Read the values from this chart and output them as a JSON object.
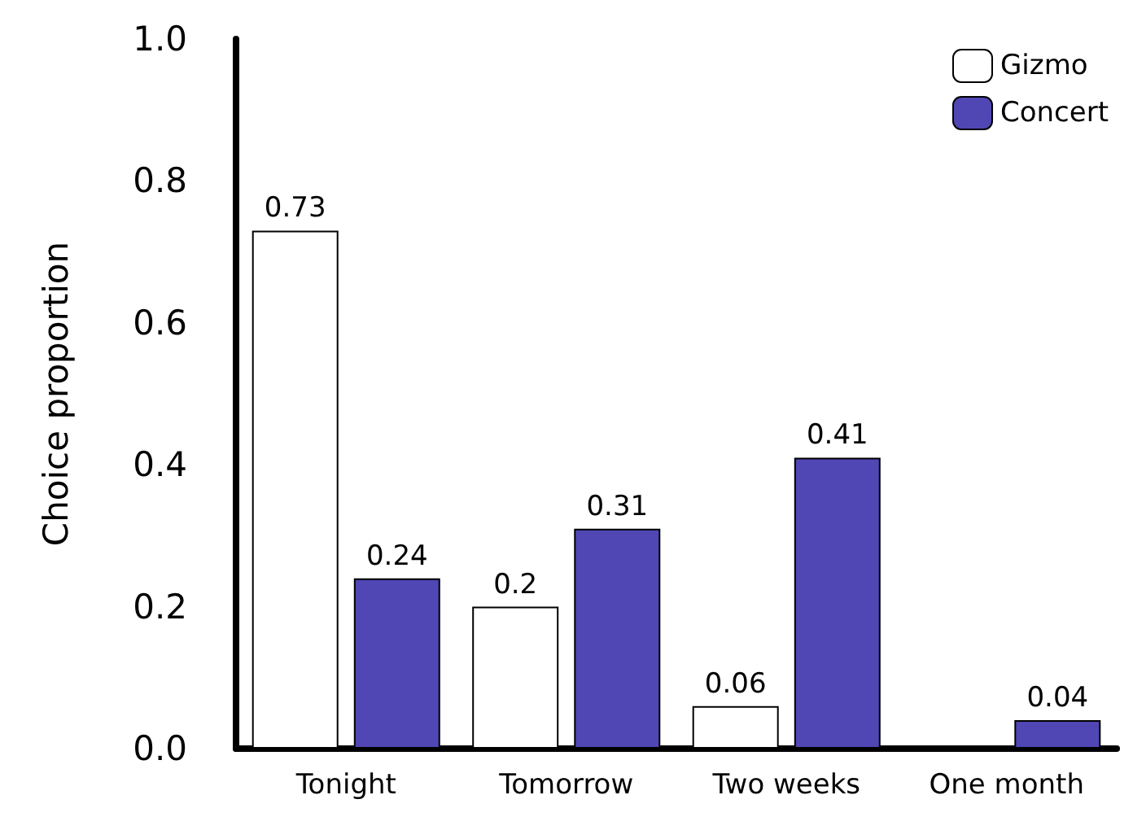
{
  "chart_data": {
    "type": "bar",
    "ylabel": "Choice proportion",
    "categories": [
      "Tonight",
      "Tomorrow",
      "Two weeks",
      "One month"
    ],
    "series": [
      {
        "name": "Gizmo",
        "color": "#ffffff",
        "values": [
          0.73,
          0.2,
          0.06,
          null
        ],
        "value_labels": [
          "0.73",
          "0.2",
          "0.06",
          null
        ]
      },
      {
        "name": "Concert",
        "color": "#5046b4",
        "values": [
          0.24,
          0.31,
          0.41,
          0.04
        ],
        "value_labels": [
          "0.24",
          "0.31",
          "0.41",
          "0.04"
        ]
      }
    ],
    "ylim": [
      0,
      1
    ],
    "yticks": [
      {
        "value": 0,
        "label": "0.0"
      },
      {
        "value": 0.2,
        "label": "0.2"
      },
      {
        "value": 0.4,
        "label": "0.4"
      },
      {
        "value": 0.6,
        "label": "0.6"
      },
      {
        "value": 0.8,
        "label": "0.8"
      },
      {
        "value": 1,
        "label": "1.0"
      }
    ],
    "grid": false,
    "legend": "top right"
  }
}
